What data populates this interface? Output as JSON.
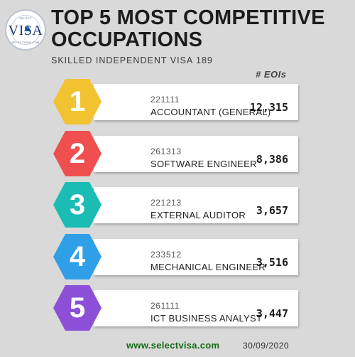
{
  "logo": {
    "word": "VISA",
    "top_text": "SELECT",
    "bottom_text": "SELECTVISA.COM"
  },
  "header": {
    "title": "TOP 5 MOST COMPETITIVE OCCUPATIONS",
    "subtitle": "SKILLED INDEPENDENT VISA 189",
    "column_label": "# EOIs"
  },
  "occupations": [
    {
      "rank": "1",
      "code": "221111",
      "name": "ACCOUNTANT (GENERAL)",
      "eois": "12,315",
      "color": "#f2c230"
    },
    {
      "rank": "2",
      "code": "261313",
      "name": "SOFTWARE ENGINEER",
      "eois": "8,386",
      "color": "#f04f4f"
    },
    {
      "rank": "3",
      "code": "221213",
      "name": "EXTERNAL AUDITOR",
      "eois": "3,657",
      "color": "#1bbcb4"
    },
    {
      "rank": "4",
      "code": "233512",
      "name": "MECHANICAL ENGINEER",
      "eois": "3,516",
      "color": "#2f9fe8"
    },
    {
      "rank": "5",
      "code": "261111",
      "name": "ICT BUSINESS ANALYST",
      "eois": "3,447",
      "color": "#8b4fd8"
    }
  ],
  "footer": {
    "website": "www.selectvisa.com",
    "date": "30/09/2020"
  }
}
